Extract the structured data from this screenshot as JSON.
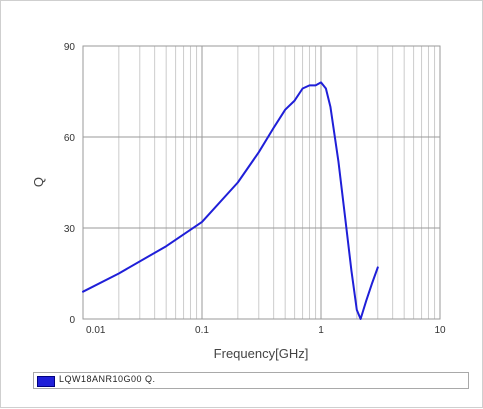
{
  "chart_data": {
    "type": "line",
    "title": "",
    "xlabel": "Frequency[GHz]",
    "ylabel": "Q",
    "x_scale": "log",
    "xlim": [
      0.01,
      10
    ],
    "ylim": [
      0,
      90
    ],
    "x_ticks": [
      "0.01",
      "0.1",
      "1",
      "10"
    ],
    "y_ticks": [
      "0",
      "30",
      "60",
      "90"
    ],
    "grid": true,
    "legend_position": "bottom",
    "series": [
      {
        "name": "LQW18ANR10G00 Q.",
        "color": "#1f1fd8",
        "x": [
          0.01,
          0.02,
          0.05,
          0.1,
          0.2,
          0.3,
          0.4,
          0.5,
          0.6,
          0.7,
          0.8,
          0.9,
          1.0,
          1.1,
          1.2,
          1.4,
          1.6,
          1.8,
          2.0,
          2.15,
          2.4,
          2.7,
          3.0
        ],
        "y": [
          9,
          15,
          24,
          32,
          45,
          55,
          63,
          69,
          72,
          76,
          77,
          77,
          78,
          76,
          70,
          52,
          33,
          16,
          3,
          0,
          6,
          12,
          17
        ]
      }
    ]
  }
}
